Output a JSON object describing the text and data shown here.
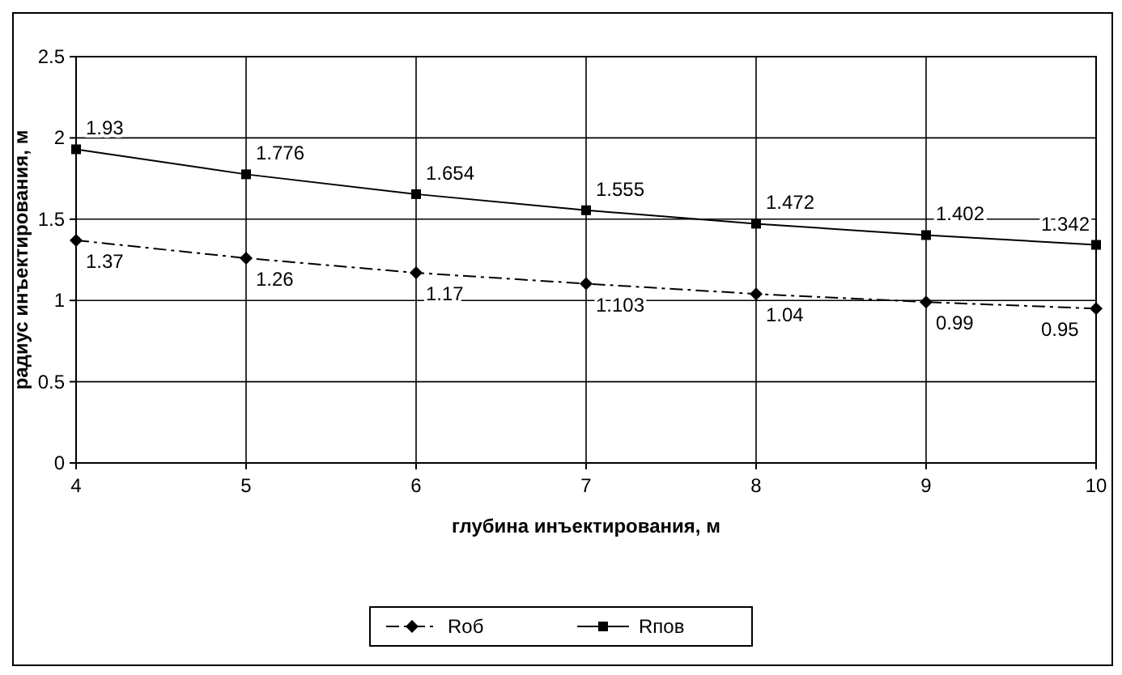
{
  "chart_data": {
    "type": "line",
    "xlabel": "глубина инъектирования, м",
    "ylabel": "радиус инъектирования, м",
    "x": [
      4,
      5,
      6,
      7,
      8,
      9,
      10
    ],
    "xlim": [
      4,
      10
    ],
    "xticks": [
      4,
      5,
      6,
      7,
      8,
      9,
      10
    ],
    "ylim": [
      0,
      2.5
    ],
    "yticks": [
      0,
      0.5,
      1,
      1.5,
      2,
      2.5
    ],
    "grid": true,
    "legend": "bottom",
    "data_labels": true,
    "series": [
      {
        "name": "Rоб",
        "color": "#000000",
        "values": [
          1.37,
          1.26,
          1.17,
          1.103,
          1.04,
          0.99,
          0.95
        ],
        "marker": "diamond",
        "line_style": "dashdot"
      },
      {
        "name": "Rпов",
        "color": "#000000",
        "values": [
          1.93,
          1.776,
          1.654,
          1.555,
          1.472,
          1.402,
          1.342
        ],
        "marker": "square",
        "line_style": "solid"
      }
    ]
  }
}
